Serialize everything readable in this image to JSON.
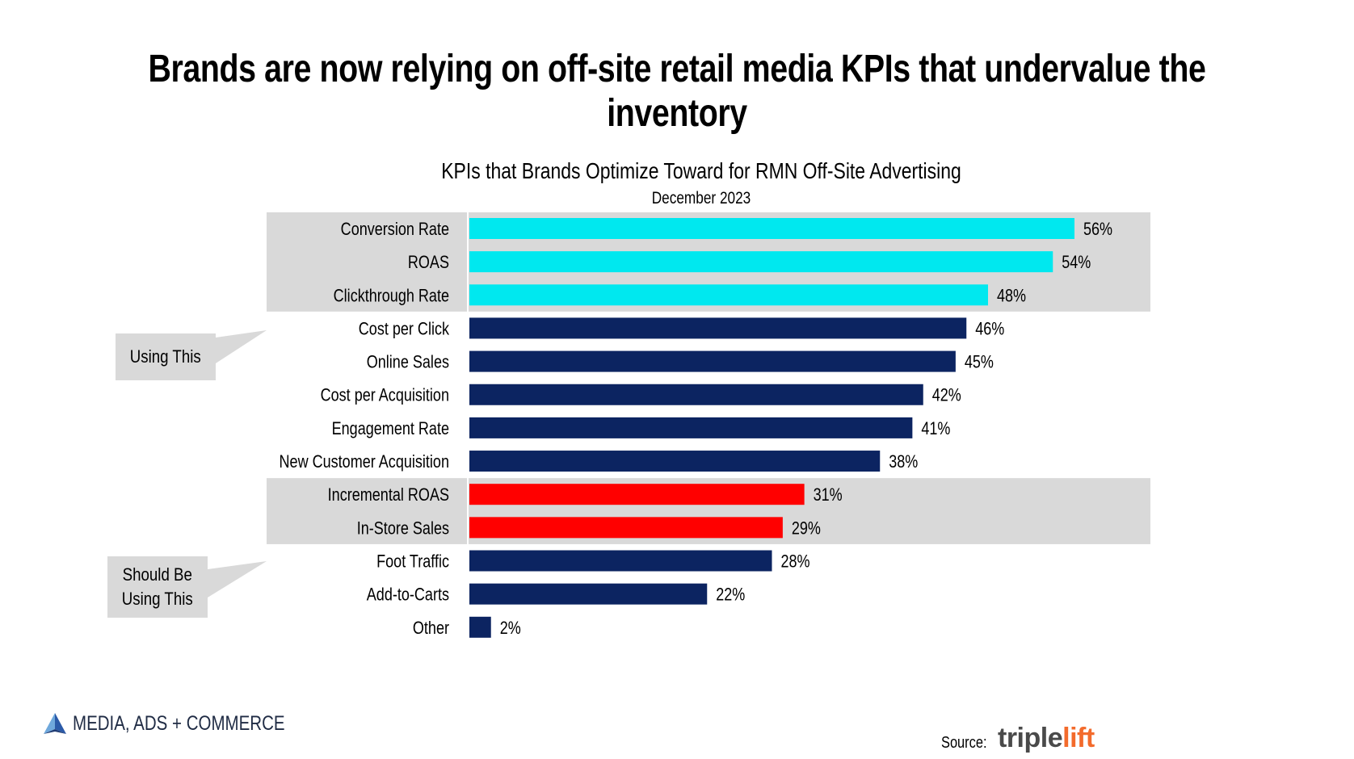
{
  "headline": "Brands are now relying on off-site retail media KPIs that undervalue the inventory",
  "callouts": {
    "using": "Using This",
    "should_line1": "Should Be",
    "should_line2": "Using This"
  },
  "footer": {
    "brand": "MEDIA, ADS + COMMERCE",
    "source_label": "Source:",
    "source_logo_a": "triple",
    "source_logo_b": "lift"
  },
  "colors": {
    "cyan": "#00e8ef",
    "navy": "#0c2461",
    "red": "#ff0000",
    "highlight": "#d9d9d9"
  },
  "chart_data": {
    "type": "bar",
    "orientation": "horizontal",
    "title": "KPIs that Brands Optimize Toward for RMN Off-Site Advertising",
    "subtitle": "December 2023",
    "categories": [
      "Conversion Rate",
      "ROAS",
      "Clickthrough Rate",
      "Cost per Click",
      "Online Sales",
      "Cost per Acquisition",
      "Engagement Rate",
      "New Customer Acquisition",
      "Incremental ROAS",
      "In-Store Sales",
      "Foot Traffic",
      "Add-to-Carts",
      "Other"
    ],
    "values": [
      56,
      54,
      48,
      46,
      45,
      42,
      41,
      38,
      31,
      29,
      28,
      22,
      2
    ],
    "value_labels": [
      "56%",
      "54%",
      "48%",
      "46%",
      "45%",
      "42%",
      "41%",
      "38%",
      "31%",
      "29%",
      "28%",
      "22%",
      "2%"
    ],
    "bar_colors": [
      "cyan",
      "cyan",
      "cyan",
      "navy",
      "navy",
      "navy",
      "navy",
      "navy",
      "red",
      "red",
      "navy",
      "navy",
      "navy"
    ],
    "highlight_groups": [
      {
        "label": "Using This",
        "categories": [
          "Conversion Rate",
          "ROAS",
          "Clickthrough Rate"
        ]
      },
      {
        "label": "Should Be Using This",
        "categories": [
          "Incremental ROAS",
          "In-Store Sales"
        ]
      }
    ],
    "xlim": [
      0,
      56
    ],
    "grid": false,
    "legend": "none"
  }
}
